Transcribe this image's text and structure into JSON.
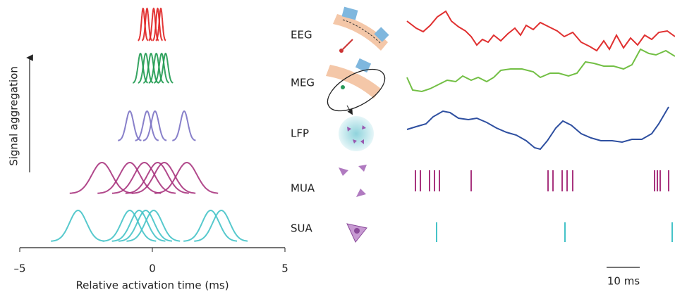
{
  "left_panel": {
    "y_label": "Signal aggregation",
    "x_label": "Relative activation time (ms)",
    "x_ticks": [
      {
        "value": -5,
        "label": "–5"
      },
      0,
      5
    ]
  },
  "right_panel": {
    "rows": [
      "EEG",
      "MEG",
      "LFP",
      "MUA",
      "SUA"
    ],
    "scale_bar": "10 ms"
  }
}
